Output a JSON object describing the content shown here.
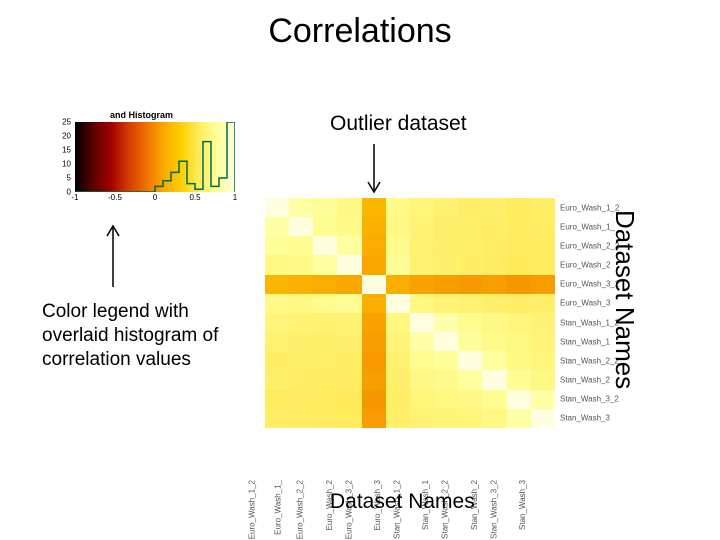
{
  "title": "Correlations",
  "legend": {
    "title": "and Histogram",
    "gradient_colors": [
      "#000000",
      "#5a0000",
      "#a00000",
      "#d63a00",
      "#f07000",
      "#faaa00",
      "#fdd000",
      "#ffec60",
      "#ffff99",
      "#ffffe0"
    ],
    "domain": [
      -1.0,
      1.0
    ],
    "x_ticks": [
      -1,
      -0.5,
      0,
      0.5,
      1
    ],
    "x_tick_labels": [
      "-1",
      "-0.5",
      "0",
      "0.5",
      "1"
    ],
    "y_ticks": [
      0,
      5,
      10,
      15,
      20,
      25
    ],
    "hist_bins": {
      "edges": [
        -1.0,
        -0.9,
        -0.8,
        -0.7,
        -0.6,
        -0.5,
        -0.4,
        -0.3,
        -0.2,
        -0.1,
        0.0,
        0.1,
        0.2,
        0.3,
        0.4,
        0.5,
        0.6,
        0.7,
        0.8,
        0.9,
        1.0
      ],
      "heights": [
        0,
        0,
        0,
        0,
        0,
        0,
        0,
        0,
        0,
        0,
        2,
        4,
        7,
        11,
        3,
        1,
        18,
        2,
        5,
        25
      ]
    },
    "hist_line_color": "#006a4e",
    "hist_line_width": 1.5,
    "y_max": 25,
    "background": "#ffffff"
  },
  "legend_caption": "Color legend with overlaid histogram of correlation values",
  "outlier_label": "Outlier dataset",
  "heatmap": {
    "n": 12,
    "names": [
      "Euro_Wash_1_2",
      "Euro_Wash_1_",
      "Euro_Wash_2_2",
      "Euro_Wash_2",
      "Euro_Wash_3_2",
      "Euro_Wash_3",
      "Stan_Wash_1_2",
      "Stan_Wash_1",
      "Stan_Wash_2_2",
      "Stan_Wash_2",
      "Stan_Wash_3_2",
      "Stan_Wash_3"
    ],
    "outlier_index": 4,
    "matrix": [
      [
        1.0,
        0.82,
        0.78,
        0.7,
        0.18,
        0.72,
        0.66,
        0.62,
        0.58,
        0.6,
        0.55,
        0.58
      ],
      [
        0.82,
        1.0,
        0.75,
        0.72,
        0.15,
        0.7,
        0.64,
        0.6,
        0.6,
        0.58,
        0.56,
        0.57
      ],
      [
        0.78,
        0.75,
        1.0,
        0.8,
        0.12,
        0.73,
        0.62,
        0.6,
        0.59,
        0.57,
        0.55,
        0.56
      ],
      [
        0.7,
        0.72,
        0.8,
        1.0,
        0.1,
        0.76,
        0.63,
        0.61,
        0.58,
        0.56,
        0.54,
        0.55
      ],
      [
        0.18,
        0.15,
        0.12,
        0.1,
        1.0,
        0.14,
        0.08,
        0.06,
        0.05,
        0.07,
        0.04,
        0.06
      ],
      [
        0.72,
        0.7,
        0.73,
        0.76,
        0.14,
        1.0,
        0.68,
        0.65,
        0.62,
        0.6,
        0.58,
        0.59
      ],
      [
        0.66,
        0.64,
        0.62,
        0.63,
        0.08,
        0.68,
        1.0,
        0.83,
        0.74,
        0.7,
        0.66,
        0.64
      ],
      [
        0.62,
        0.6,
        0.6,
        0.61,
        0.06,
        0.65,
        0.83,
        1.0,
        0.78,
        0.72,
        0.68,
        0.65
      ],
      [
        0.58,
        0.6,
        0.59,
        0.58,
        0.05,
        0.62,
        0.74,
        0.78,
        1.0,
        0.8,
        0.7,
        0.66
      ],
      [
        0.6,
        0.58,
        0.57,
        0.56,
        0.07,
        0.6,
        0.7,
        0.72,
        0.8,
        1.0,
        0.76,
        0.7
      ],
      [
        0.55,
        0.56,
        0.55,
        0.54,
        0.04,
        0.58,
        0.66,
        0.68,
        0.7,
        0.76,
        1.0,
        0.82
      ],
      [
        0.58,
        0.57,
        0.56,
        0.55,
        0.06,
        0.59,
        0.64,
        0.65,
        0.66,
        0.7,
        0.82,
        1.0
      ]
    ],
    "colorscale": [
      "#000000",
      "#5a0000",
      "#a00000",
      "#d63a00",
      "#f07000",
      "#faaa00",
      "#fdd000",
      "#ffec60",
      "#ffff99",
      "#ffffe0"
    ]
  },
  "x_axis_title": "Dataset Names",
  "y_axis_title": "Dataset Names",
  "arrow_color": "#000000"
}
